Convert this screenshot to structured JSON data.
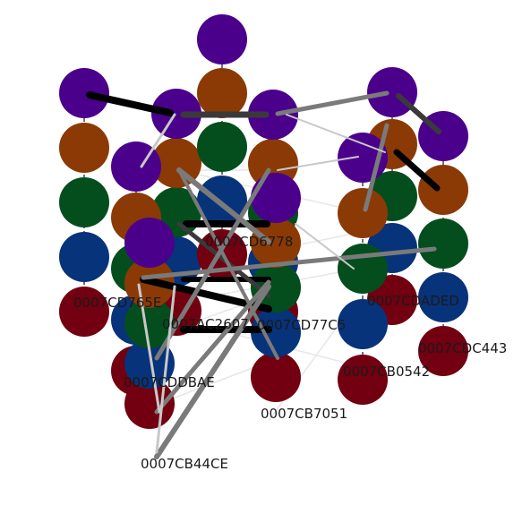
{
  "colors": {
    "purple": "#4b008c",
    "orange": "#8b3a06",
    "green": "#044e1e",
    "blue": "#07337a",
    "red": "#720010",
    "edge_black": "#000000",
    "edge_dark": "#3a3a3a",
    "edge_gray": "#7a7a7a",
    "edge_light": "#c8c8c8",
    "edge_faint": "#e6e6e6",
    "text": "#1a1a1a"
  },
  "labels": {
    "n_cd6778": "0007CD6778",
    "n_cd765e": "0007CD765E",
    "n_ac2607": "0007AC2607",
    "n_cd77c5": "0007CD77C5",
    "n_cdaded": "0007CDADED",
    "n_cdc443": "0007CDC443",
    "n_cb0542": "0007CB0542",
    "n_cddbae": "0007CDDBAE",
    "n_cb7051": "0007CB7051",
    "n_cb44ce": "0007CB44CE"
  }
}
